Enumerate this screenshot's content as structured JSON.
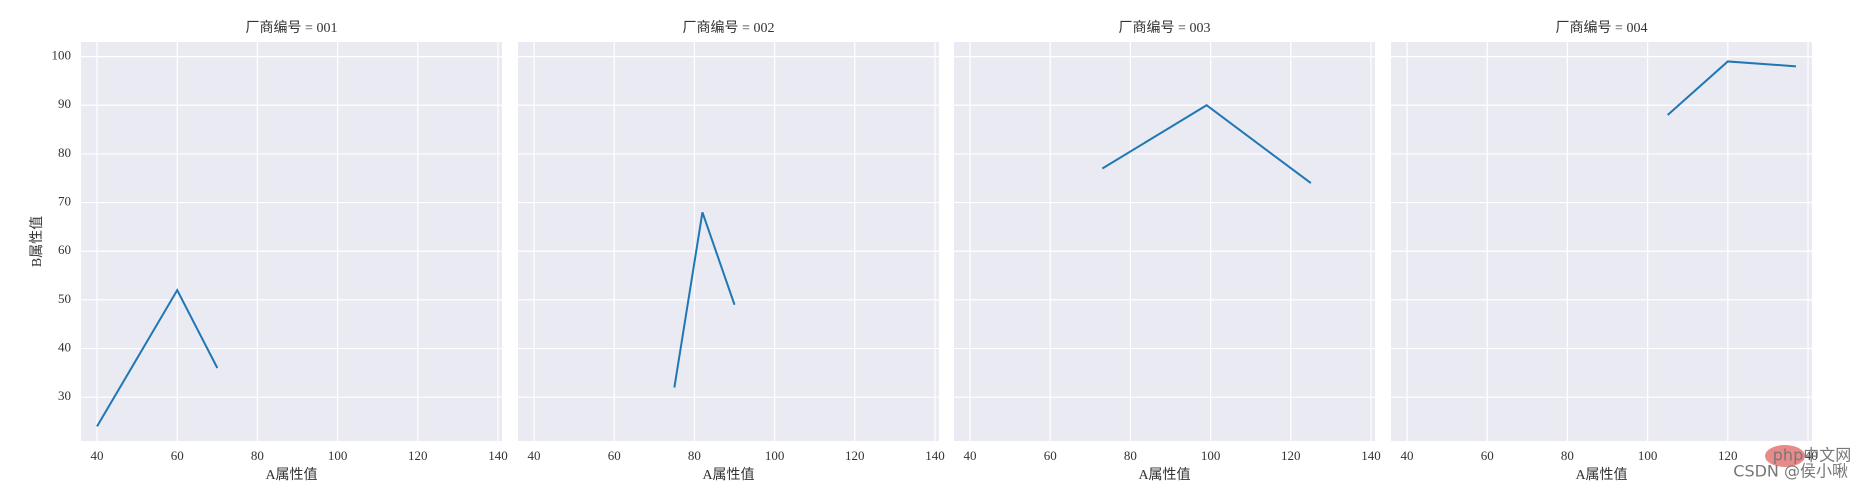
{
  "chart_data": [
    {
      "type": "line",
      "title": "厂商编号 = 001",
      "xlabel": "A属性值",
      "ylabel": "B属性值",
      "x": [
        40,
        60,
        70
      ],
      "values": [
        24,
        52,
        36
      ],
      "color": "#1f77b4",
      "xlim": [
        36,
        141
      ],
      "ylim": [
        21,
        103
      ],
      "xticks": [
        40,
        60,
        80,
        100,
        120,
        140
      ],
      "yticks": [
        30,
        40,
        50,
        60,
        70,
        80,
        90,
        100
      ],
      "grid": true
    },
    {
      "type": "line",
      "title": "厂商编号 = 002",
      "xlabel": "A属性值",
      "x": [
        75,
        82,
        90
      ],
      "values": [
        32,
        68,
        49
      ],
      "color": "#1f77b4",
      "xlim": [
        36,
        141
      ],
      "ylim": [
        21,
        103
      ],
      "xticks": [
        40,
        60,
        80,
        100,
        120,
        140
      ],
      "yticks": [
        30,
        40,
        50,
        60,
        70,
        80,
        90,
        100
      ],
      "grid": true
    },
    {
      "type": "line",
      "title": "厂商编号 = 003",
      "xlabel": "A属性值",
      "x": [
        73,
        99,
        125
      ],
      "values": [
        77,
        90,
        74
      ],
      "color": "#1f77b4",
      "xlim": [
        36,
        141
      ],
      "ylim": [
        21,
        103
      ],
      "xticks": [
        40,
        60,
        80,
        100,
        120,
        140
      ],
      "yticks": [
        30,
        40,
        50,
        60,
        70,
        80,
        90,
        100
      ],
      "grid": true
    },
    {
      "type": "line",
      "title": "厂商编号 = 004",
      "xlabel": "A属性值",
      "x": [
        105,
        120,
        137
      ],
      "values": [
        88,
        99,
        98
      ],
      "color": "#1f77b4",
      "xlim": [
        36,
        141
      ],
      "ylim": [
        21,
        103
      ],
      "xticks": [
        40,
        60,
        80,
        100,
        120,
        140
      ],
      "yticks": [
        30,
        40,
        50,
        60,
        70,
        80,
        90,
        100
      ],
      "grid": true
    }
  ],
  "watermark": {
    "logo": "php中文网",
    "credit": "CSDN @侯小啾"
  }
}
